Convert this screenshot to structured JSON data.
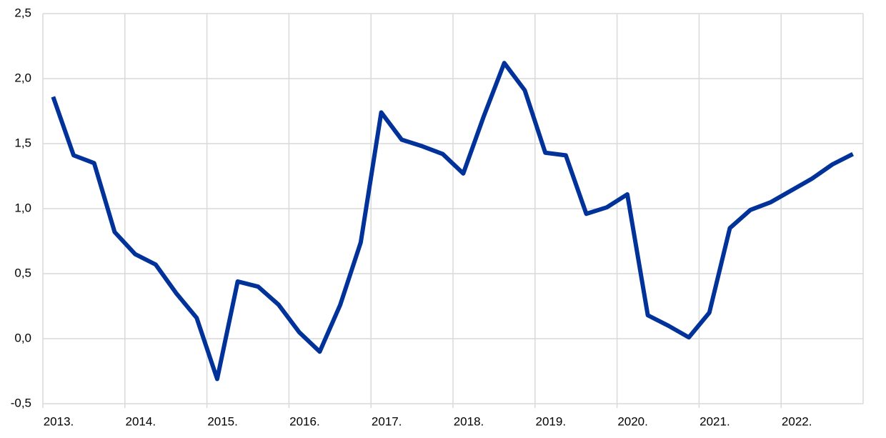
{
  "chart_data": {
    "type": "line",
    "x": [
      2013.125,
      2013.375,
      2013.625,
      2013.875,
      2014.125,
      2014.375,
      2014.625,
      2014.875,
      2015.125,
      2015.375,
      2015.625,
      2015.875,
      2016.125,
      2016.375,
      2016.625,
      2016.875,
      2017.125,
      2017.375,
      2017.625,
      2017.875,
      2018.125,
      2018.375,
      2018.625,
      2018.875,
      2019.125,
      2019.375,
      2019.625,
      2019.875,
      2020.125,
      2020.375,
      2020.625,
      2020.875,
      2021.125,
      2021.375,
      2021.625,
      2021.875,
      2022.125,
      2022.375,
      2022.625,
      2022.875
    ],
    "series": [
      {
        "color": "#003299",
        "values": [
          1.86,
          1.41,
          1.35,
          0.82,
          0.65,
          0.57,
          0.35,
          0.16,
          -0.31,
          0.44,
          0.4,
          0.26,
          0.05,
          -0.1,
          0.26,
          0.74,
          1.74,
          1.53,
          1.48,
          1.42,
          1.27,
          1.71,
          2.12,
          1.91,
          1.43,
          1.41,
          0.96,
          1.01,
          1.11,
          0.18,
          0.1,
          0.01,
          0.2,
          0.85,
          0.99,
          1.05,
          1.14,
          1.23,
          1.34,
          1.42
        ]
      }
    ],
    "xlim": [
      2013,
      2023
    ],
    "xticks": [
      {
        "value": 2013,
        "label": "2013."
      },
      {
        "value": 2014,
        "label": "2014."
      },
      {
        "value": 2015,
        "label": "2015."
      },
      {
        "value": 2016,
        "label": "2016."
      },
      {
        "value": 2017,
        "label": "2017."
      },
      {
        "value": 2018,
        "label": "2018."
      },
      {
        "value": 2019,
        "label": "2019."
      },
      {
        "value": 2020,
        "label": "2020."
      },
      {
        "value": 2021,
        "label": "2021."
      },
      {
        "value": 2022,
        "label": "2022."
      }
    ],
    "ylim": [
      -0.5,
      2.5
    ],
    "yticks": [
      {
        "value": -0.5,
        "label": "-0,5"
      },
      {
        "value": 0,
        "label": "0,0"
      },
      {
        "value": 0.5,
        "label": "0,5"
      },
      {
        "value": 1,
        "label": "1,0"
      },
      {
        "value": 1.5,
        "label": "1,5"
      },
      {
        "value": 2,
        "label": "2,0"
      },
      {
        "value": 2.5,
        "label": "2,5"
      }
    ],
    "grid": true
  }
}
